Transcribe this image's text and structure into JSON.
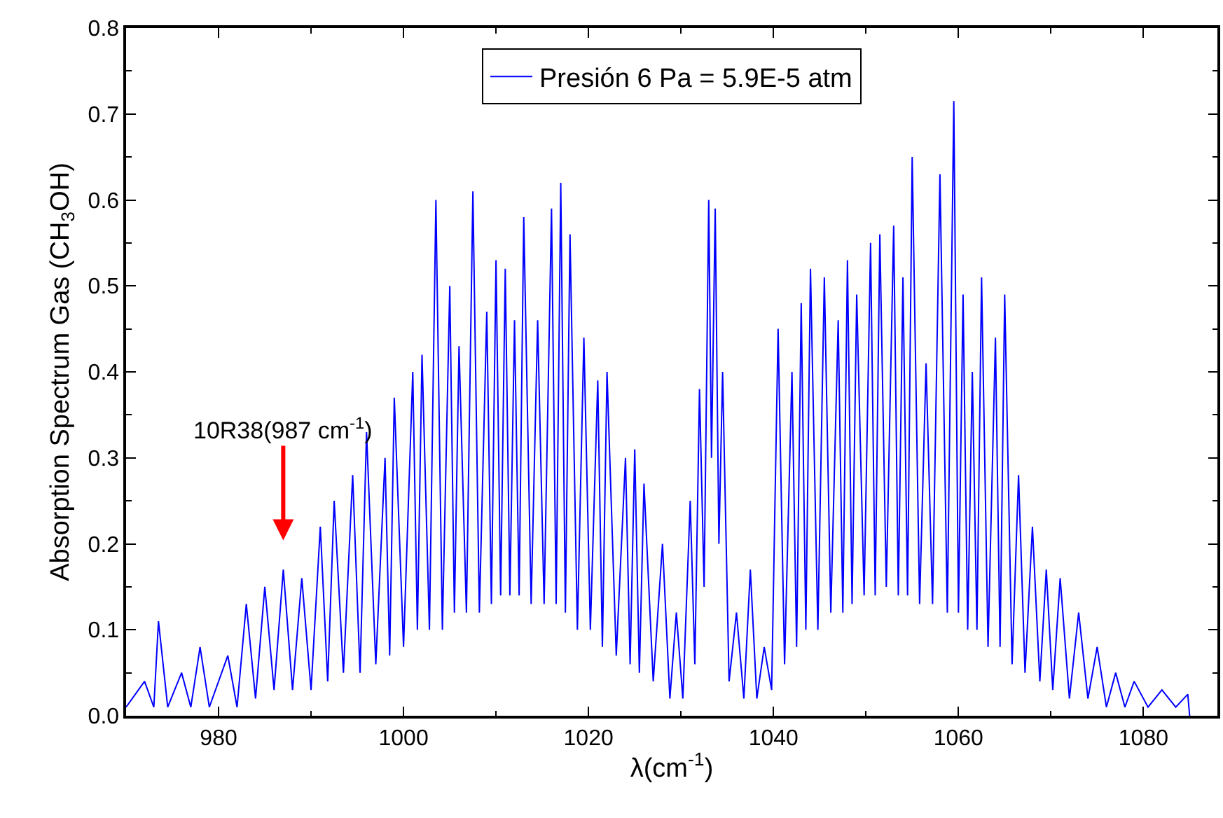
{
  "chart_data": {
    "type": "line",
    "xlabel": "λ(cm$^{-1}$)",
    "ylabel": "Absorption Spectrum Gas (CH$_{3}$OH)",
    "xlim": [
      970,
      1088
    ],
    "xticks": [
      980,
      1000,
      1020,
      1040,
      1060,
      1080
    ],
    "ylim": [
      0,
      0.8
    ],
    "yticks": [
      {
        "value": 0,
        "label": "0.0"
      },
      {
        "value": 0.1,
        "label": "0.1"
      },
      {
        "value": 0.2,
        "label": "0.2"
      },
      {
        "value": 0.3,
        "label": "0.3"
      },
      {
        "value": 0.4,
        "label": "0.4"
      },
      {
        "value": 0.5,
        "label": "0.5"
      },
      {
        "value": 0.6,
        "label": "0.6"
      },
      {
        "value": 0.7,
        "label": "0.7"
      },
      {
        "value": 0.8,
        "label": "0.8"
      }
    ],
    "grid": false,
    "legend": "top",
    "marker": "none",
    "line_style": "solid",
    "annotations": [
      "10R38(987 cm$^{-1}$)"
    ],
    "series": [
      {
        "name": "Presión 6 Pa = 5.9E-5 atm",
        "color": "#0000ff",
        "x": [
          970,
          972,
          973,
          973.5,
          974.5,
          976,
          977,
          978,
          979,
          981,
          982,
          983,
          984,
          985,
          986,
          987,
          988,
          989,
          990,
          991,
          991.8,
          992.5,
          993.5,
          994.5,
          995.3,
          996,
          997,
          998,
          998.5,
          999,
          1000,
          1001,
          1001.5,
          1002,
          1002.8,
          1003.5,
          1004.2,
          1005,
          1005.5,
          1006,
          1006.8,
          1007.5,
          1008.2,
          1009,
          1009.5,
          1010,
          1010.5,
          1011,
          1011.5,
          1012,
          1012.5,
          1013,
          1013.8,
          1014.5,
          1015.2,
          1016,
          1016.5,
          1017,
          1017.5,
          1018,
          1018.8,
          1019.5,
          1020.2,
          1021,
          1021.5,
          1022,
          1023,
          1024,
          1024.5,
          1025,
          1025.5,
          1026,
          1027,
          1028,
          1028.8,
          1029.5,
          1030.2,
          1031,
          1031.5,
          1032,
          1032.5,
          1033,
          1033.3,
          1033.7,
          1034.1,
          1034.5,
          1035.2,
          1036,
          1036.8,
          1037.5,
          1038.2,
          1039,
          1039.8,
          1040.5,
          1041.2,
          1042,
          1042.5,
          1043,
          1043.5,
          1044,
          1044.8,
          1045.5,
          1046.2,
          1047,
          1047.5,
          1048,
          1048.5,
          1049,
          1049.8,
          1050.5,
          1051,
          1051.5,
          1052.2,
          1053,
          1053.5,
          1054,
          1054.5,
          1055,
          1055.8,
          1056.5,
          1057.2,
          1058,
          1058.8,
          1059.5,
          1060,
          1060.5,
          1061,
          1061.5,
          1062,
          1062.5,
          1063.2,
          1064,
          1064.5,
          1065,
          1065.8,
          1066.5,
          1067.2,
          1068,
          1068.8,
          1069.5,
          1070.2,
          1071,
          1072,
          1073,
          1074,
          1075,
          1076,
          1077,
          1078,
          1079,
          1080.5,
          1082,
          1083.5,
          1084.8,
          1085
        ],
        "values": [
          0.01,
          0.04,
          0.01,
          0.11,
          0.01,
          0.05,
          0.01,
          0.08,
          0.01,
          0.07,
          0.01,
          0.13,
          0.02,
          0.15,
          0.03,
          0.17,
          0.03,
          0.16,
          0.03,
          0.22,
          0.04,
          0.25,
          0.05,
          0.28,
          0.05,
          0.33,
          0.06,
          0.3,
          0.07,
          0.37,
          0.08,
          0.4,
          0.1,
          0.42,
          0.1,
          0.6,
          0.1,
          0.5,
          0.12,
          0.43,
          0.12,
          0.61,
          0.12,
          0.47,
          0.13,
          0.53,
          0.14,
          0.52,
          0.14,
          0.46,
          0.14,
          0.58,
          0.13,
          0.46,
          0.13,
          0.59,
          0.13,
          0.62,
          0.12,
          0.56,
          0.1,
          0.44,
          0.1,
          0.39,
          0.08,
          0.4,
          0.07,
          0.3,
          0.06,
          0.31,
          0.05,
          0.27,
          0.04,
          0.2,
          0.02,
          0.12,
          0.02,
          0.25,
          0.06,
          0.38,
          0.15,
          0.6,
          0.3,
          0.59,
          0.2,
          0.4,
          0.04,
          0.12,
          0.02,
          0.17,
          0.02,
          0.08,
          0.03,
          0.45,
          0.06,
          0.4,
          0.08,
          0.48,
          0.1,
          0.52,
          0.1,
          0.51,
          0.12,
          0.46,
          0.12,
          0.53,
          0.13,
          0.49,
          0.14,
          0.55,
          0.14,
          0.56,
          0.15,
          0.57,
          0.14,
          0.51,
          0.14,
          0.65,
          0.13,
          0.41,
          0.13,
          0.63,
          0.12,
          0.715,
          0.12,
          0.49,
          0.1,
          0.4,
          0.1,
          0.51,
          0.08,
          0.44,
          0.08,
          0.49,
          0.06,
          0.28,
          0.05,
          0.22,
          0.04,
          0.17,
          0.03,
          0.16,
          0.02,
          0.12,
          0.02,
          0.08,
          0.01,
          0.05,
          0.01,
          0.04,
          0.01,
          0.03,
          0.01,
          0.025,
          0.0
        ]
      }
    ]
  }
}
